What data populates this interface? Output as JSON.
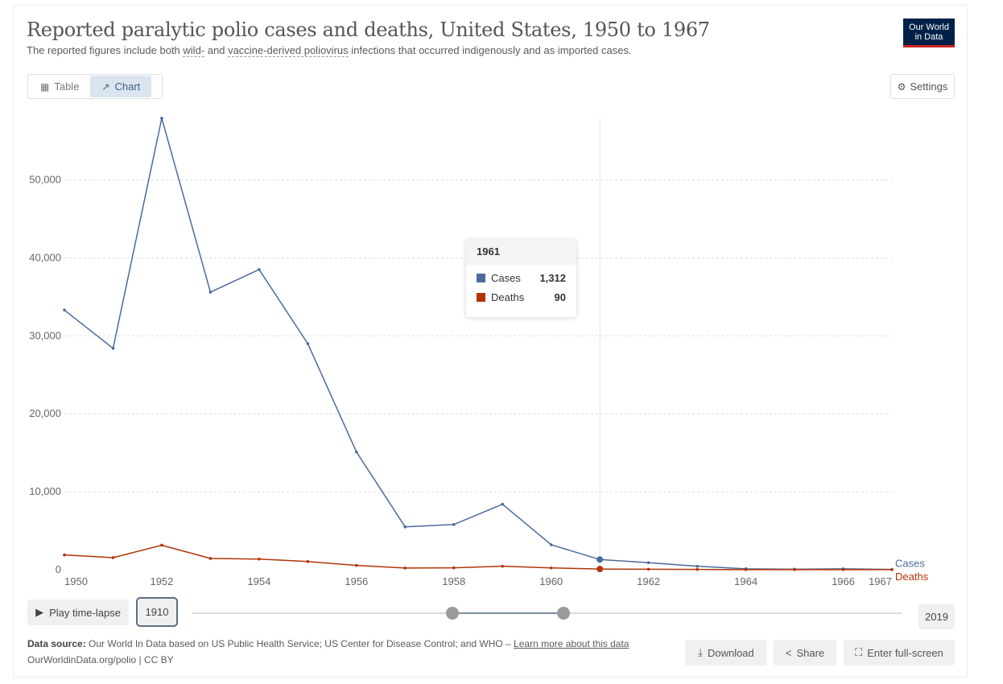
{
  "header": {
    "title": "Reported paralytic polio cases and deaths, United States, 1950 to 1967",
    "subtitle_pre": "The reported figures include both ",
    "subtitle_link1": "wild-",
    "subtitle_mid": " and ",
    "subtitle_link2": "vaccine-derived poliovirus",
    "subtitle_post": " infections that occurred indigenously and as imported cases.",
    "logo_line1": "Our World",
    "logo_line2": "in Data"
  },
  "toolbar": {
    "table_label": "Table",
    "chart_label": "Chart",
    "settings_label": "Settings"
  },
  "colors": {
    "cases": "#4c6a9c",
    "deaths": "#b13507",
    "grid": "#dddddd",
    "axis_text": "#666666"
  },
  "tooltip": {
    "year": "1961",
    "rows": [
      {
        "name": "Cases",
        "value": "1,312"
      },
      {
        "name": "Deaths",
        "value": "90"
      }
    ]
  },
  "timeline": {
    "play_label": "Play time-lapse",
    "start_year": "1910",
    "end_year": "2019"
  },
  "footer": {
    "source_label": "Data source:",
    "source_text": " Our World In Data based on US Public Health Service; US Center for Disease Control; and WHO – ",
    "source_link": "Learn more about this data",
    "url": "OurWorldinData.org/polio | CC BY",
    "download_label": "Download",
    "share_label": "Share",
    "fullscreen_label": "Enter full-screen"
  },
  "chart_data": {
    "type": "line",
    "x": [
      1950,
      1951,
      1952,
      1953,
      1954,
      1955,
      1956,
      1957,
      1958,
      1959,
      1960,
      1961,
      1962,
      1963,
      1964,
      1965,
      1966,
      1967
    ],
    "x_ticks": [
      "1950",
      "1952",
      "1954",
      "1956",
      "1958",
      "1960",
      "1962",
      "1964",
      "1966",
      "1967"
    ],
    "y_ticks": [
      "0",
      "10,000",
      "20,000",
      "30,000",
      "40,000",
      "50,000"
    ],
    "ylim": [
      0,
      58000
    ],
    "xlim": [
      1950,
      1967
    ],
    "grid": true,
    "highlight_x": 1961,
    "series": [
      {
        "name": "Cases",
        "color": "#4c6a9c",
        "values": [
          33300,
          28400,
          57900,
          35600,
          38500,
          29000,
          15100,
          5500,
          5800,
          8400,
          3200,
          1312,
          900,
          450,
          120,
          70,
          110,
          40
        ]
      },
      {
        "name": "Deaths",
        "color": "#b13507",
        "values": [
          1900,
          1550,
          3150,
          1450,
          1370,
          1050,
          560,
          220,
          250,
          450,
          230,
          90,
          60,
          40,
          15,
          15,
          10,
          15
        ]
      }
    ]
  }
}
